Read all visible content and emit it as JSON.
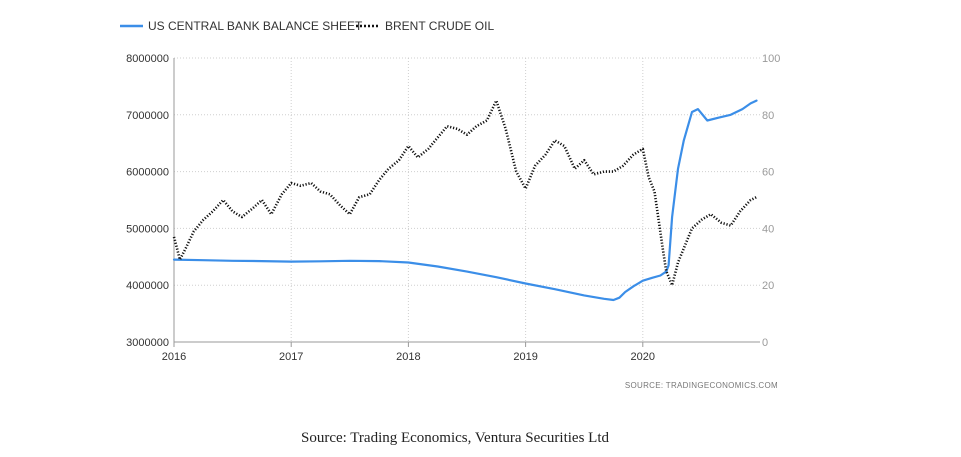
{
  "chart_data": {
    "type": "line",
    "title": "",
    "series": [
      {
        "name": "US CENTRAL BANK BALANCE SHEET",
        "axis": "left",
        "color": "#3b8ee8",
        "style": "solid",
        "points": [
          [
            2016.0,
            4450000
          ],
          [
            2016.25,
            4440000
          ],
          [
            2016.5,
            4430000
          ],
          [
            2016.75,
            4425000
          ],
          [
            2017.0,
            4415000
          ],
          [
            2017.25,
            4420000
          ],
          [
            2017.5,
            4430000
          ],
          [
            2017.75,
            4425000
          ],
          [
            2018.0,
            4400000
          ],
          [
            2018.25,
            4330000
          ],
          [
            2018.5,
            4240000
          ],
          [
            2018.75,
            4140000
          ],
          [
            2019.0,
            4030000
          ],
          [
            2019.25,
            3930000
          ],
          [
            2019.5,
            3820000
          ],
          [
            2019.67,
            3760000
          ],
          [
            2019.75,
            3740000
          ],
          [
            2019.8,
            3780000
          ],
          [
            2019.85,
            3880000
          ],
          [
            2019.92,
            3980000
          ],
          [
            2020.0,
            4080000
          ],
          [
            2020.08,
            4130000
          ],
          [
            2020.15,
            4170000
          ],
          [
            2020.2,
            4240000
          ],
          [
            2020.22,
            4350000
          ],
          [
            2020.25,
            5200000
          ],
          [
            2020.3,
            6050000
          ],
          [
            2020.35,
            6550000
          ],
          [
            2020.42,
            7050000
          ],
          [
            2020.47,
            7100000
          ],
          [
            2020.55,
            6900000
          ],
          [
            2020.65,
            6950000
          ],
          [
            2020.75,
            7000000
          ],
          [
            2020.85,
            7100000
          ],
          [
            2020.92,
            7200000
          ],
          [
            2020.97,
            7250000
          ]
        ]
      },
      {
        "name": "BRENT CRUDE OIL",
        "axis": "right",
        "color": "#111111",
        "style": "dotted",
        "points": [
          [
            2016.0,
            37
          ],
          [
            2016.05,
            29
          ],
          [
            2016.1,
            33
          ],
          [
            2016.17,
            39
          ],
          [
            2016.25,
            43
          ],
          [
            2016.33,
            46
          ],
          [
            2016.42,
            50
          ],
          [
            2016.5,
            46
          ],
          [
            2016.58,
            44
          ],
          [
            2016.67,
            47
          ],
          [
            2016.75,
            50
          ],
          [
            2016.83,
            45
          ],
          [
            2016.92,
            52
          ],
          [
            2017.0,
            56
          ],
          [
            2017.08,
            55
          ],
          [
            2017.17,
            56
          ],
          [
            2017.25,
            53
          ],
          [
            2017.33,
            52
          ],
          [
            2017.42,
            48
          ],
          [
            2017.5,
            45
          ],
          [
            2017.58,
            51
          ],
          [
            2017.67,
            52
          ],
          [
            2017.75,
            57
          ],
          [
            2017.83,
            61
          ],
          [
            2017.92,
            64
          ],
          [
            2018.0,
            69
          ],
          [
            2018.08,
            65
          ],
          [
            2018.17,
            68
          ],
          [
            2018.25,
            72
          ],
          [
            2018.33,
            76
          ],
          [
            2018.42,
            75
          ],
          [
            2018.5,
            73
          ],
          [
            2018.58,
            76
          ],
          [
            2018.67,
            78
          ],
          [
            2018.75,
            85
          ],
          [
            2018.83,
            75
          ],
          [
            2018.92,
            60
          ],
          [
            2019.0,
            54
          ],
          [
            2019.08,
            62
          ],
          [
            2019.17,
            66
          ],
          [
            2019.25,
            71
          ],
          [
            2019.33,
            69
          ],
          [
            2019.42,
            61
          ],
          [
            2019.5,
            64
          ],
          [
            2019.58,
            59
          ],
          [
            2019.67,
            60
          ],
          [
            2019.75,
            60
          ],
          [
            2019.83,
            62
          ],
          [
            2019.92,
            66
          ],
          [
            2020.0,
            68
          ],
          [
            2020.05,
            58
          ],
          [
            2020.1,
            53
          ],
          [
            2020.17,
            33
          ],
          [
            2020.2,
            25
          ],
          [
            2020.25,
            20
          ],
          [
            2020.3,
            28
          ],
          [
            2020.35,
            33
          ],
          [
            2020.42,
            40
          ],
          [
            2020.5,
            43
          ],
          [
            2020.58,
            45
          ],
          [
            2020.67,
            42
          ],
          [
            2020.75,
            41
          ],
          [
            2020.83,
            46
          ],
          [
            2020.92,
            50
          ],
          [
            2020.97,
            51
          ]
        ]
      }
    ],
    "x_axis": {
      "range": [
        2016.0,
        2021.0
      ],
      "ticks": [
        2016,
        2017,
        2018,
        2019,
        2020
      ],
      "tick_labels": [
        "2016",
        "2017",
        "2018",
        "2019",
        "2020"
      ]
    },
    "y_left": {
      "range": [
        3000000,
        8000000
      ],
      "ticks": [
        3000000,
        4000000,
        5000000,
        6000000,
        7000000,
        8000000
      ],
      "tick_labels": [
        "3000000",
        "4000000",
        "5000000",
        "6000000",
        "7000000",
        "8000000"
      ]
    },
    "y_right": {
      "range": [
        0,
        100
      ],
      "ticks": [
        0,
        20,
        40,
        60,
        80,
        100
      ],
      "tick_labels": [
        "0",
        "20",
        "40",
        "60",
        "80",
        "100"
      ]
    },
    "grid": true,
    "legend_position": "top-left",
    "source_note": "SOURCE:  TRADINGECONOMICS.COM"
  },
  "caption": "Source: Trading Economics, Ventura Securities Ltd"
}
